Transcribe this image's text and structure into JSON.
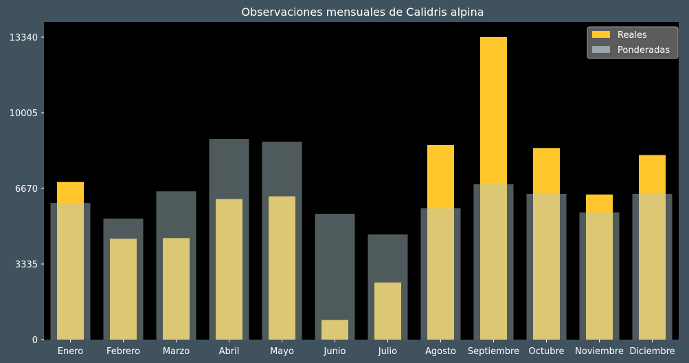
{
  "chart_data": {
    "type": "bar",
    "title": "Observaciones mensuales de Calidris alpina",
    "xlabel": "",
    "ylabel": "",
    "categories": [
      "Enero",
      "Febrero",
      "Marzo",
      "Abril",
      "Mayo",
      "Junio",
      "Julio",
      "Agosto",
      "Septiembre",
      "Octubre",
      "Noviembre",
      "Diciembre"
    ],
    "yticks": [
      0,
      3335,
      6670,
      10005,
      13340
    ],
    "ylim": [
      0,
      13340
    ],
    "grid": false,
    "legend_position": "top-right",
    "series": [
      {
        "name": "Reales",
        "color": "#ffc72c",
        "values": [
          6950,
          4450,
          4480,
          6200,
          6320,
          870,
          2520,
          8580,
          13340,
          8450,
          6400,
          8140
        ]
      },
      {
        "name": "Ponderadas",
        "color": "#b0c8cc",
        "values": [
          6030,
          5340,
          6540,
          8850,
          8730,
          5550,
          4640,
          5790,
          6850,
          6430,
          5610,
          6430
        ]
      }
    ]
  }
}
